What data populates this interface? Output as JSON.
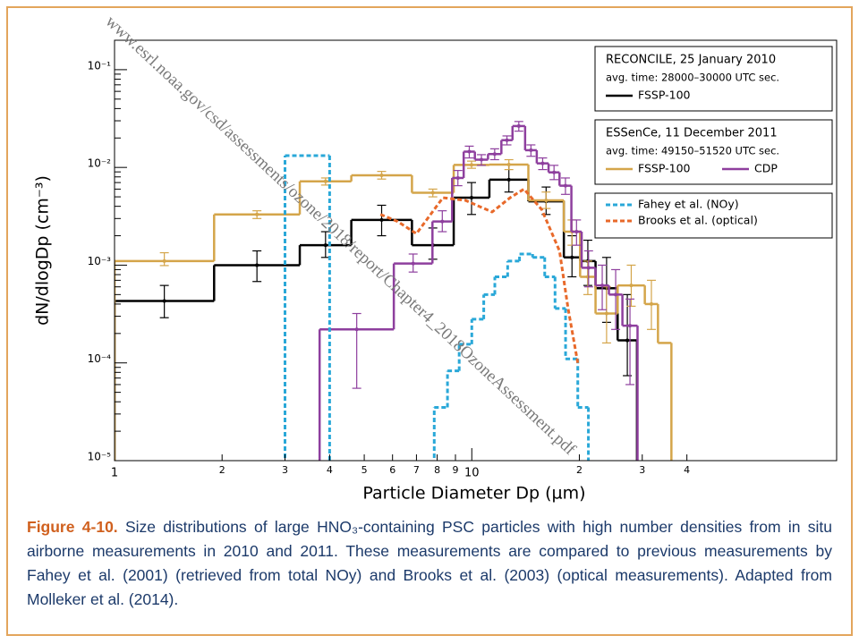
{
  "chart_data": {
    "type": "step",
    "watermark": "www.esrl.noaa.gov/csd/assessments/ozone/2018/report/Chapter4_2018OzoneAssessment.pdf",
    "x_label": "Particle Diameter Dp (µm)",
    "y_label": "dN/dlogDp (cm⁻³)",
    "log_x": true,
    "log_y": true,
    "xlim": [
      1,
      105
    ],
    "ylim": [
      1e-05,
      0.2
    ],
    "xticks": [
      1,
      2,
      3,
      4,
      5,
      6,
      7,
      8,
      9,
      10,
      {
        "value": 20,
        "label": "2"
      },
      {
        "value": 30,
        "label": "3"
      },
      {
        "value": 40,
        "label": "4"
      }
    ],
    "yticks": [
      {
        "value": 1e-05,
        "label": "10⁻⁵"
      },
      {
        "value": 0.0001,
        "label": "10⁻⁴"
      },
      {
        "value": 0.001,
        "label": "10⁻³"
      },
      {
        "value": 0.01,
        "label": "10⁻²"
      },
      {
        "value": 0.1,
        "label": "10⁻¹"
      }
    ],
    "legend": [
      {
        "lines": [
          "RECONCILE, 25 January 2010",
          "avg. time: 28000–30000 UTC sec."
        ],
        "series": [
          0
        ]
      },
      {
        "lines": [
          "ESSenCe, 11 December 2011",
          "avg. time: 49150–51520 UTC sec."
        ],
        "series": [
          1,
          2
        ]
      },
      {
        "series": [
          3,
          4
        ]
      }
    ],
    "series": [
      {
        "name": "FSSP-100",
        "color": "#000000",
        "style": "step",
        "dash": false,
        "bins": [
          1.0,
          1.9,
          3.3,
          4.6,
          6.8,
          8.9,
          11.2,
          14.4,
          18.1,
          20.1,
          22.2,
          25.6,
          29
        ],
        "values": [
          0.00043,
          0.001,
          0.0016,
          0.0029,
          0.0016,
          0.0049,
          0.0075,
          0.0045,
          0.0012,
          0.0011,
          0.00058,
          0.00017
        ],
        "lower": [
          0.00029,
          0.00068,
          0.0012,
          0.002,
          0.00115,
          0.0033,
          0.0056,
          0.0033,
          0.00076,
          0.00062,
          0.00026,
          7.4e-05
        ],
        "upper": [
          0.00062,
          0.0014,
          0.0022,
          0.0041,
          0.0024,
          0.007,
          0.0107,
          0.0063,
          0.002,
          0.0018,
          0.0012,
          0.0005
        ]
      },
      {
        "name": "FSSP-100",
        "color": "#d4a54a",
        "style": "step",
        "dash": false,
        "bins": [
          1.0,
          1.9,
          3.3,
          4.6,
          6.8,
          8.9,
          11.2,
          14.4,
          18.1,
          20.1,
          22.2,
          25.6,
          30.5,
          33.2,
          36.2
        ],
        "values": [
          0.0011,
          0.0033,
          0.0072,
          0.0083,
          0.0055,
          0.0106,
          0.0107,
          0.0046,
          0.0022,
          0.00076,
          0.00032,
          0.00062,
          0.0004,
          0.00016
        ],
        "lower": [
          0.00099,
          0.003,
          0.0066,
          0.0076,
          0.005,
          0.0098,
          0.0095,
          0.0038,
          0.0016,
          0.0005,
          0.00016,
          0.00038,
          0.00022,
          null
        ],
        "upper": [
          0.00134,
          0.0036,
          0.0078,
          0.0091,
          0.006,
          0.0116,
          0.012,
          0.0056,
          0.0029,
          0.0011,
          0.0006,
          0.001,
          0.0007,
          null
        ]
      },
      {
        "name": "CDP",
        "color": "#8e3f9e",
        "style": "step",
        "dash": false,
        "bins": [
          3.75,
          6.05,
          7.76,
          8.81,
          9.49,
          10.2,
          11.1,
          12.1,
          13.0,
          14.1,
          15.2,
          16.4,
          17.6,
          19.0,
          20.3,
          22.2,
          24.2,
          26.4,
          29.1
        ],
        "values": [
          0.00022,
          0.00104,
          0.0028,
          0.0078,
          0.0145,
          0.012,
          0.0137,
          0.019,
          0.0265,
          0.015,
          0.011,
          0.0089,
          0.0065,
          0.0022,
          0.00094,
          0.00062,
          0.0005,
          0.00024
        ],
        "lower": [
          5.5e-05,
          0.00085,
          0.0022,
          0.0065,
          0.0125,
          0.0105,
          0.012,
          0.017,
          0.0235,
          0.013,
          0.0095,
          0.0075,
          0.0053,
          0.0016,
          0.0006,
          0.00035,
          0.00022,
          6e-05
        ],
        "upper": [
          0.00032,
          0.0013,
          0.0036,
          0.0093,
          0.0165,
          0.0135,
          0.0155,
          0.021,
          0.0295,
          0.017,
          0.0125,
          0.0105,
          0.0078,
          0.0029,
          0.0014,
          0.001,
          0.0009,
          0.00045
        ]
      },
      {
        "name": "Fahey et al. (NOy)",
        "color": "#2aa8d8",
        "style": "step",
        "dash": true,
        "bins": [
          3.0,
          4.0,
          7.85,
          8.55,
          9.22,
          10.0,
          10.8,
          11.6,
          12.6,
          13.6,
          14.8,
          16.0,
          17.1,
          18.3,
          19.8,
          21.2
        ],
        "values": [
          0.0132,
          null,
          3.5e-05,
          8.3e-05,
          0.000155,
          0.00028,
          0.0005,
          0.00076,
          0.0011,
          0.0013,
          0.0012,
          0.00076,
          0.00036,
          0.00011,
          3.5e-05
        ]
      },
      {
        "name": "Brooks et al. (optical)",
        "color": "#e8692a",
        "style": "line",
        "dash": true,
        "x": [
          5.55,
          6.2,
          7.0,
          8.3,
          9.6,
          11.4,
          12.8,
          14.0,
          15.7,
          17.6,
          18.6,
          19.8
        ],
        "values": [
          0.0033,
          0.0028,
          0.0021,
          0.0049,
          0.0046,
          0.0035,
          0.0049,
          0.006,
          0.0037,
          0.0014,
          0.00036,
          0.0001
        ]
      }
    ]
  },
  "caption": {
    "label": "Figure 4-10.",
    "text": " Size distributions of large HNO₃-containing PSC particles with high number densities from in situ airborne measurements in 2010 and 2011. These measurements are compared to previous measurements by Fahey et al. (2001) (retrieved from total NOy) and Brooks et al. (2003) (optical measurements). Adapted from Molleker et al. (2014)."
  }
}
